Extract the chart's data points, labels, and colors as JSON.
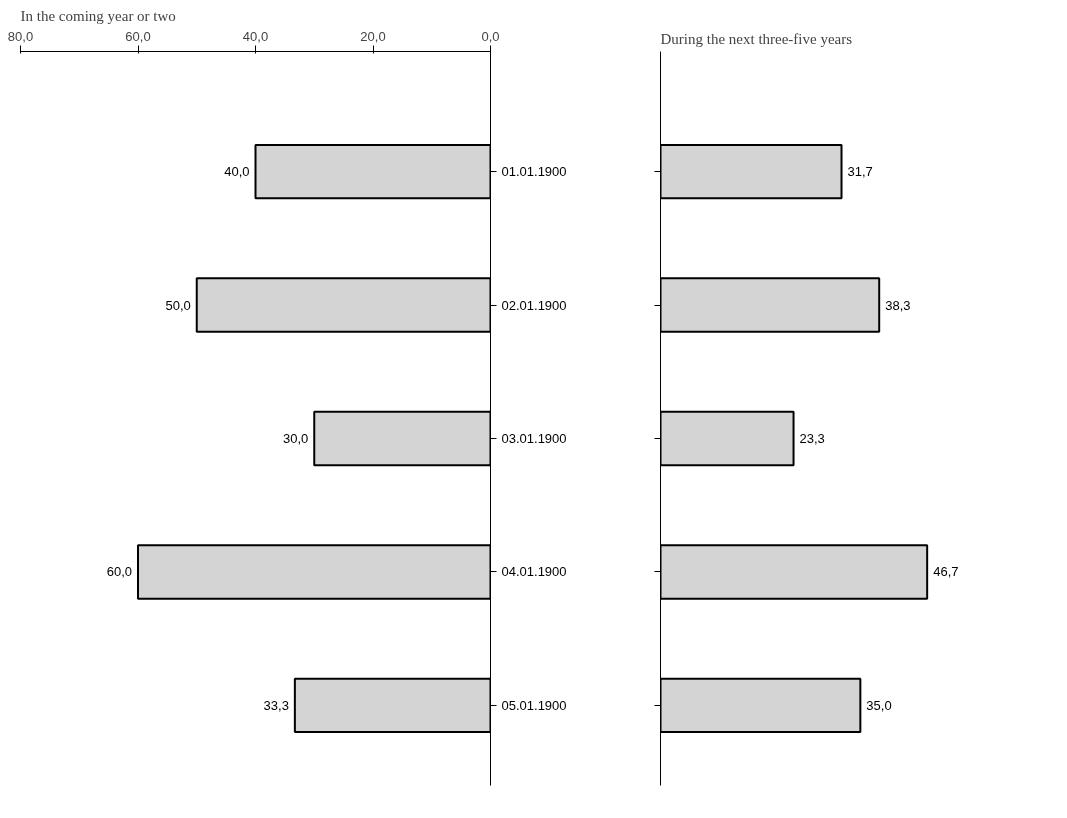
{
  "chart_data": [
    {
      "type": "bar",
      "orientation": "horizontal",
      "title": "In the coming year or two",
      "categories": [
        "01.01.1900",
        "02.01.1900",
        "03.01.1900",
        "04.01.1900",
        "05.01.1900"
      ],
      "values": [
        40.0,
        50.0,
        30.0,
        60.0,
        33.3
      ],
      "color": "#d4d4d4",
      "xlim": [
        80,
        0
      ],
      "xticks": [
        {
          "value": 80,
          "label": "80,0"
        },
        {
          "value": 60,
          "label": "60,0"
        },
        {
          "value": 40,
          "label": "40,0"
        },
        {
          "value": 20,
          "label": "20,0"
        },
        {
          "value": 0,
          "label": "0,0"
        }
      ],
      "value_labels": [
        "40,0",
        "50,0",
        "30,0",
        "60,0",
        "33,3"
      ],
      "grid": false
    },
    {
      "type": "bar",
      "orientation": "horizontal",
      "title": "During the next three-five years",
      "categories": [
        null,
        null,
        null,
        null,
        null
      ],
      "values": [
        31.7,
        38.3,
        23.3,
        46.7,
        35.0
      ],
      "color": "#d4d4d4",
      "value_labels": [
        "31,7",
        "38,3",
        "23,3",
        "46,7",
        "35,0"
      ],
      "grid": false
    }
  ]
}
